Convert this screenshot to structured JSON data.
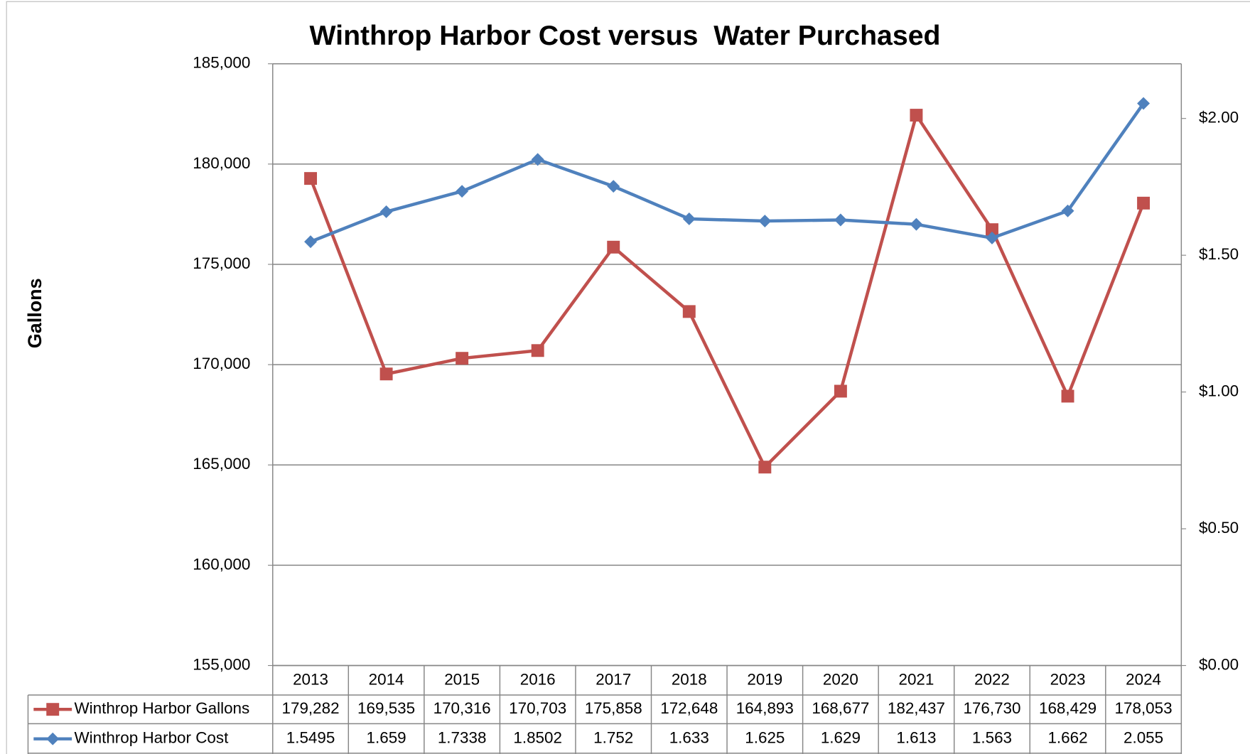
{
  "chart_data": {
    "type": "line",
    "title": "Winthrop Harbor Cost versus  Water Purchased",
    "ylabel": "Gallons",
    "categories": [
      "2013",
      "2014",
      "2015",
      "2016",
      "2017",
      "2018",
      "2019",
      "2020",
      "2021",
      "2022",
      "2023",
      "2024"
    ],
    "series": [
      {
        "name": "Winthrop Harbor Gallons",
        "color": "#c0504d",
        "marker": "square",
        "values": [
          179282,
          169535,
          170316,
          170703,
          175858,
          172648,
          164893,
          168677,
          182437,
          176730,
          168429,
          178053
        ],
        "value_labels": [
          "179,282",
          "169,535",
          "170,316",
          "170,703",
          "175,858",
          "172,648",
          "164,893",
          "168,677",
          "182,437",
          "176,730",
          "168,429",
          "178,053"
        ]
      },
      {
        "name": "Winthrop Harbor Cost",
        "color": "#4f81bd",
        "marker": "diamond",
        "axis": "y2",
        "values": [
          1.5495,
          1.659,
          1.7338,
          1.8502,
          1.752,
          1.633,
          1.625,
          1.629,
          1.613,
          1.563,
          1.662,
          2.055
        ]
      }
    ],
    "ylim": [
      155000,
      185000
    ],
    "yticks": [
      {
        "value": 155000,
        "label": "155,000"
      },
      {
        "value": 160000,
        "label": "160,000"
      },
      {
        "value": 165000,
        "label": "165,000"
      },
      {
        "value": 170000,
        "label": "170,000"
      },
      {
        "value": 175000,
        "label": "175,000"
      },
      {
        "value": 180000,
        "label": "180,000"
      },
      {
        "value": 185000,
        "label": "185,000"
      }
    ],
    "y2lim": [
      0,
      2.2
    ],
    "y2ticks": [
      {
        "value": 0,
        "label": "$0.00"
      },
      {
        "value": 0.5,
        "label": "$0.50"
      },
      {
        "value": 1,
        "label": "$1.00"
      },
      {
        "value": 1.5,
        "label": "$1.50"
      },
      {
        "value": 2,
        "label": "$2.00"
      }
    ],
    "grid": true
  }
}
